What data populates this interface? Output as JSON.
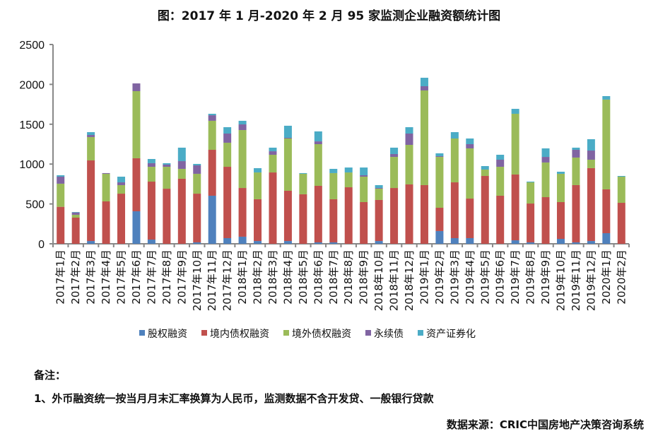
{
  "chart_data": {
    "type": "bar",
    "stacked": true,
    "title": "图：2017 年 1 月-2020 年 2 月 95 家监测企业融资额统计图",
    "xlabel": "",
    "ylabel": "",
    "ylim": [
      0,
      2500
    ],
    "yticks": [
      "0",
      "500",
      "1000",
      "1500",
      "2000",
      "2500"
    ],
    "grid": false,
    "legend_position": "bottom",
    "categories": [
      "2017年1月",
      "2017年2月",
      "2017年3月",
      "2017年4月",
      "2017年5月",
      "2017年6月",
      "2017年7月",
      "2017年8月",
      "2017年9月",
      "2017年10月",
      "2017年11月",
      "2017年12月",
      "2018年1月",
      "2018年2月",
      "2018年3月",
      "2018年4月",
      "2018年5月",
      "2018年6月",
      "2018年7月",
      "2018年8月",
      "2018年9月",
      "2018年10月",
      "2018年11月",
      "2018年12月",
      "2019年1月",
      "2019年2月",
      "2019年3月",
      "2019年4月",
      "2019年5月",
      "2019年6月",
      "2019年7月",
      "2019年8月",
      "2019年9月",
      "2019年10月",
      "2019年11月",
      "2019年12月",
      "2020年1月",
      "2020年2月"
    ],
    "series": [
      {
        "name": "股权融资",
        "color": "#4F81BD",
        "values": [
          0,
          0,
          35,
          0,
          0,
          408,
          53,
          0,
          0,
          18,
          603,
          71,
          89,
          35,
          0,
          35,
          0,
          18,
          18,
          0,
          0,
          35,
          0,
          0,
          0,
          160,
          71,
          71,
          0,
          0,
          44,
          18,
          0,
          62,
          18,
          35,
          133,
          0
        ]
      },
      {
        "name": "境内债权融资",
        "color": "#C0504D",
        "values": [
          464,
          328,
          1011,
          532,
          629,
          665,
          727,
          691,
          816,
          611,
          576,
          895,
          611,
          524,
          895,
          630,
          621,
          709,
          541,
          709,
          523,
          515,
          700,
          745,
          736,
          292,
          700,
          496,
          851,
          603,
          825,
          487,
          585,
          461,
          718,
          914,
          550,
          514
        ]
      },
      {
        "name": "境外债权融资",
        "color": "#9BBB59",
        "values": [
          290,
          36,
          293,
          346,
          107,
          842,
          186,
          275,
          124,
          249,
          364,
          302,
          727,
          336,
          222,
          656,
          257,
          523,
          328,
          186,
          319,
          141,
          390,
          496,
          1188,
          638,
          550,
          630,
          80,
          363,
          762,
          266,
          435,
          355,
          346,
          106,
          1126,
          328
        ]
      },
      {
        "name": "永续债",
        "color": "#8064A2",
        "values": [
          88,
          29,
          26,
          9,
          35,
          97,
          45,
          27,
          97,
          106,
          70,
          115,
          71,
          0,
          44,
          9,
          0,
          35,
          0,
          0,
          18,
          9,
          36,
          142,
          53,
          9,
          0,
          53,
          0,
          89,
          0,
          0,
          70,
          0,
          97,
          115,
          0,
          0
        ]
      },
      {
        "name": "资产证券化",
        "color": "#4BACC6",
        "values": [
          18,
          6,
          36,
          0,
          71,
          0,
          53,
          18,
          169,
          18,
          18,
          80,
          45,
          54,
          45,
          151,
          9,
          125,
          53,
          62,
          97,
          36,
          80,
          80,
          106,
          36,
          80,
          71,
          44,
          62,
          62,
          9,
          107,
          26,
          27,
          142,
          44,
          9
        ]
      }
    ]
  },
  "notes": {
    "heading": "备注：",
    "line1": "1、外币融资统一按当月月末汇率换算为人民币，监测数据不含开发贷、一般银行贷款"
  },
  "source": "数据来源：CRIC中国房地产决策咨询系统"
}
